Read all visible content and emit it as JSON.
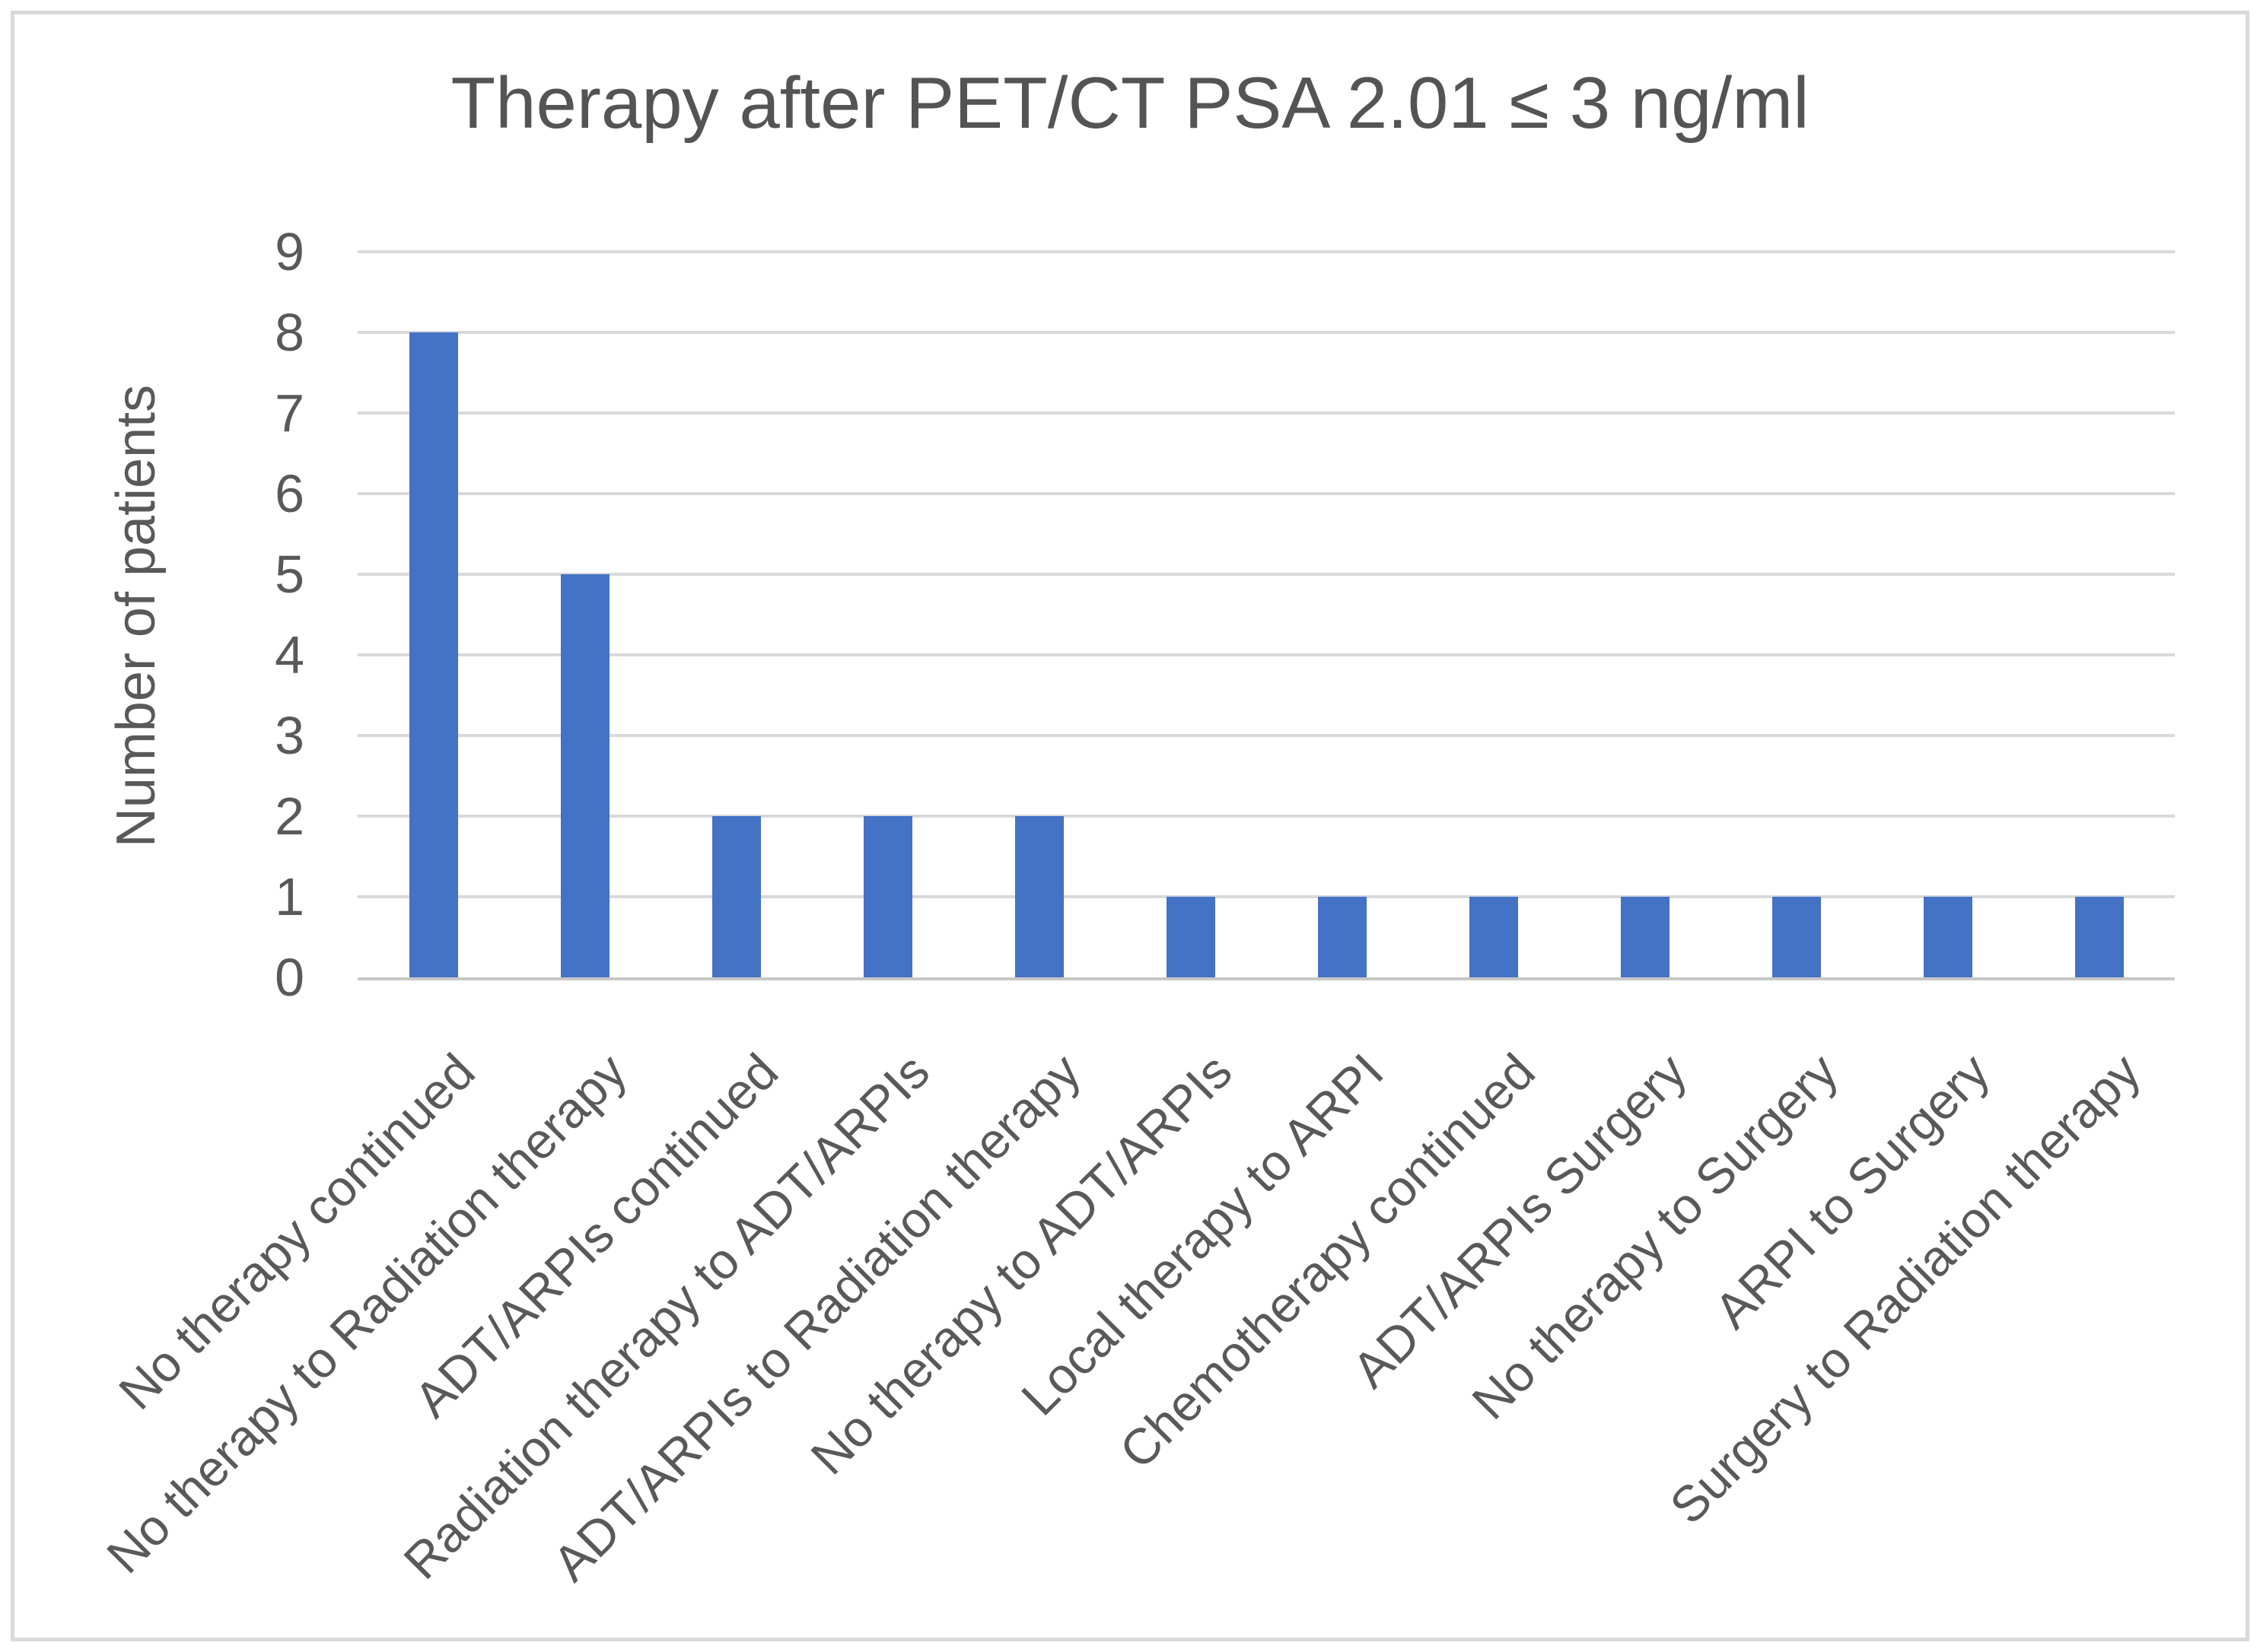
{
  "chart_data": {
    "type": "bar",
    "title": "Therapy after PET/CT PSA 2.01 ≤ 3 ng/ml",
    "ylabel": "Number of patients",
    "xlabel": "",
    "categories": [
      "No therapy continued",
      "No therapy to Radiation therapy",
      "ADT/ARPIs continued",
      "Radiation therapy to ADT/ARPIs",
      "ADT/ARPIs to Radiation therapy",
      "No therapy to ADT/ARPIs",
      "Local therapy to ARPI",
      "Chemotherapy continued",
      "ADT/ARPIs Surgery",
      "No therapy to Surgery",
      "ARPI to Surgery",
      "Surgery to Radiation therapy"
    ],
    "values": [
      8,
      5,
      2,
      2,
      2,
      1,
      1,
      1,
      1,
      1,
      1,
      1
    ],
    "ylim": [
      0,
      9
    ],
    "yticks": [
      0,
      1,
      2,
      3,
      4,
      5,
      6,
      7,
      8,
      9
    ],
    "grid": "horizontal",
    "legend": "none",
    "x_label_rotation_deg": 45,
    "colors": {
      "bar": "#4472c4",
      "gridline": "#d9d9d9",
      "axis_line": "#c8c8c8",
      "text": "#595959",
      "title_text": "#545454",
      "frame_border": "#d9d9d9",
      "background": "#ffffff"
    }
  }
}
